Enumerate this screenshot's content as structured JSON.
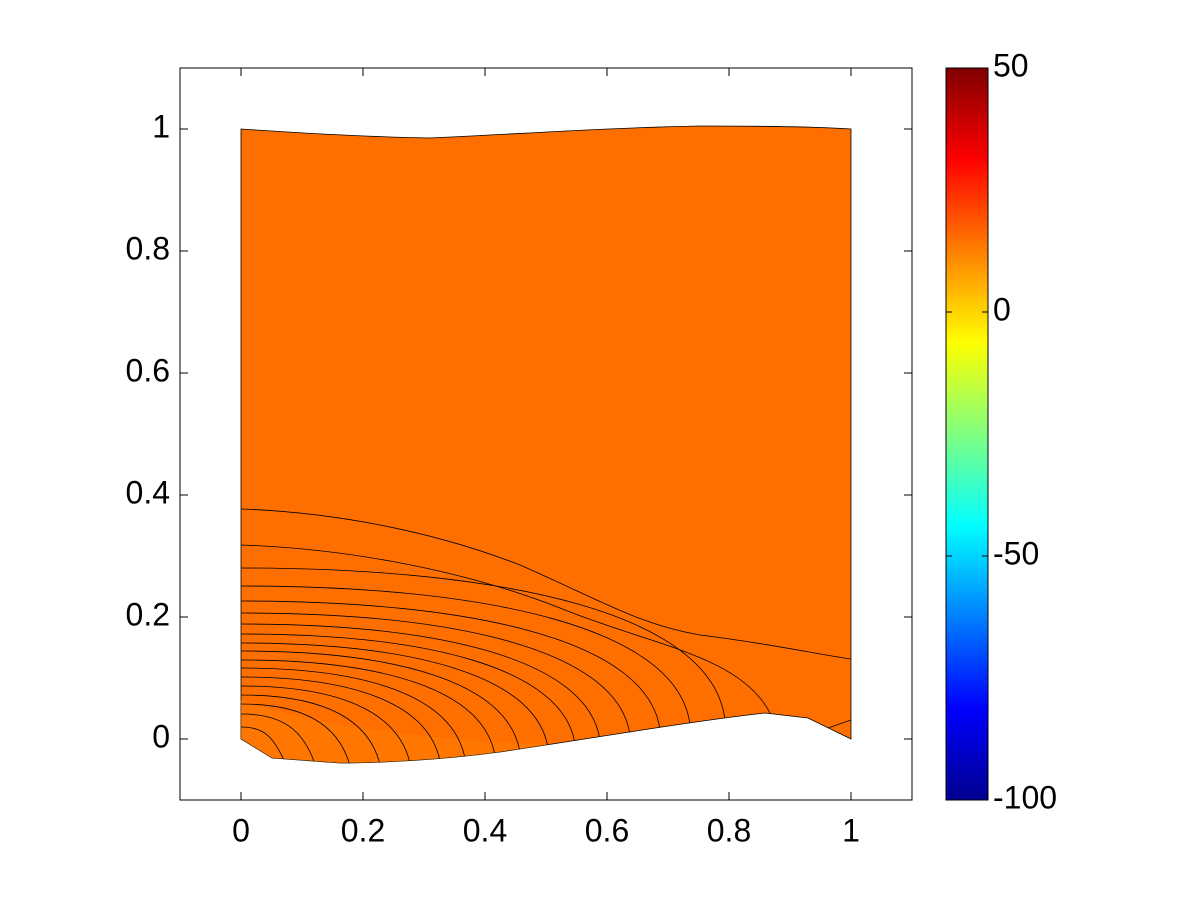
{
  "chart_data": {
    "type": "contour",
    "xlim": [
      -0.1,
      1.1
    ],
    "ylim": [
      -0.1,
      1.1
    ],
    "xticks": [
      0,
      0.2,
      0.4,
      0.6,
      0.8,
      1
    ],
    "yticks": [
      0,
      0.2,
      0.4,
      0.6,
      0.8,
      1
    ],
    "colormap": "jet",
    "colorbar": {
      "clim": [
        -100,
        50
      ],
      "ticks": [
        -100,
        -50,
        0,
        50
      ]
    }
  }
}
